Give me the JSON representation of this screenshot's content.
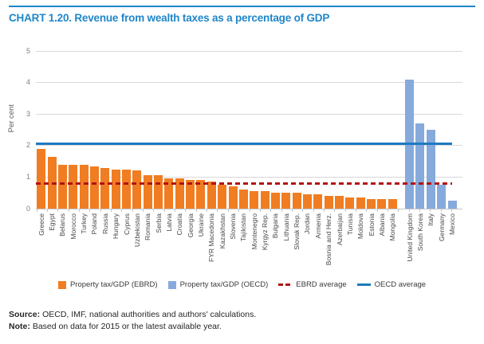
{
  "chart_data": {
    "type": "bar",
    "title": "CHART 1.20. Revenue from wealth taxes as a percentage of GDP",
    "ylabel": "Per cent",
    "xlabel": "",
    "ylim": [
      0,
      5
    ],
    "yticks": [
      0,
      1,
      2,
      3,
      4,
      5
    ],
    "grid": true,
    "legend_position": "bottom",
    "series": [
      {
        "name": "Property tax/GDP (EBRD)",
        "color": "#f07d22",
        "data": [
          [
            "Greece",
            1.9
          ],
          [
            "Egypt",
            1.65
          ],
          [
            "Belarus",
            1.4
          ],
          [
            "Morocco",
            1.4
          ],
          [
            "Turkey",
            1.4
          ],
          [
            "Poland",
            1.35
          ],
          [
            "Russia",
            1.3
          ],
          [
            "Hungary",
            1.25
          ],
          [
            "Cyprus",
            1.25
          ],
          [
            "Uzbekistan",
            1.2
          ],
          [
            "Romania",
            1.05
          ],
          [
            "Serbia",
            1.05
          ],
          [
            "Latvia",
            0.95
          ],
          [
            "Croatia",
            0.95
          ],
          [
            "Georgia",
            0.9
          ],
          [
            "Ukraine",
            0.9
          ],
          [
            "FYR Macedonia",
            0.85
          ],
          [
            "Kazakhstan",
            0.75
          ],
          [
            "Slovenia",
            0.7
          ],
          [
            "Tajikistan",
            0.6
          ],
          [
            "Montenegro",
            0.55
          ],
          [
            "Kyrgyz Rep.",
            0.55
          ],
          [
            "Bulgaria",
            0.5
          ],
          [
            "Lithuania",
            0.5
          ],
          [
            "Slovak Rep.",
            0.5
          ],
          [
            "Jordan",
            0.45
          ],
          [
            "Armenia",
            0.45
          ],
          [
            "Bosnia and Herz.",
            0.4
          ],
          [
            "Azerbaijan",
            0.4
          ],
          [
            "Tunisia",
            0.35
          ],
          [
            "Moldova",
            0.35
          ],
          [
            "Estonia",
            0.3
          ],
          [
            "Albania",
            0.3
          ],
          [
            "Mongolia",
            0.3
          ]
        ]
      },
      {
        "name": "Property tax/GDP (OECD)",
        "color": "#86aadc",
        "data": [
          [
            "United Kingdom",
            4.1
          ],
          [
            "South Korea",
            2.7
          ],
          [
            "Italy",
            2.5
          ],
          [
            "Germany",
            0.75
          ],
          [
            "Mexico",
            0.25
          ]
        ]
      }
    ],
    "reference_lines": [
      {
        "name": "EBRD average",
        "value": 0.8,
        "style": "dashed",
        "color": "#b01513"
      },
      {
        "name": "OECD average",
        "value": 2.05,
        "style": "solid",
        "color": "#1f7ac0"
      }
    ]
  },
  "theme": {
    "title_color": "#1f86c8",
    "gridline_color": "#d9d9d9",
    "axis_color": "#c6c6c6"
  },
  "footer": {
    "source_label": "Source:",
    "source_text": "OECD, IMF, national authorities and authors' calculations.",
    "note_label": "Note:",
    "note_text": "Based on data for 2015 or the latest available year."
  }
}
